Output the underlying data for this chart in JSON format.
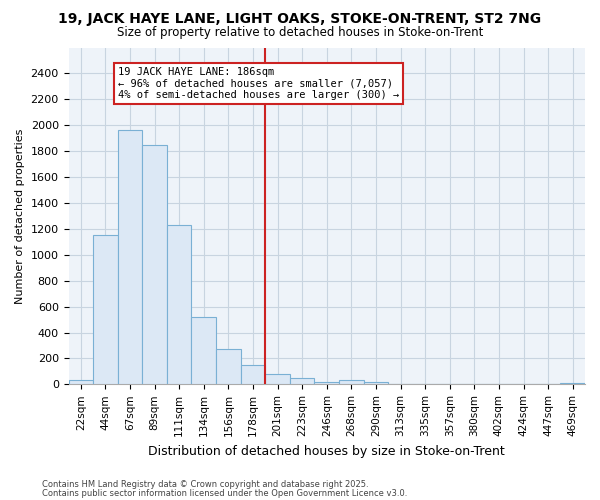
{
  "title_line1": "19, JACK HAYE LANE, LIGHT OAKS, STOKE-ON-TRENT, ST2 7NG",
  "title_line2": "Size of property relative to detached houses in Stoke-on-Trent",
  "xlabel": "Distribution of detached houses by size in Stoke-on-Trent",
  "ylabel": "Number of detached properties",
  "categories": [
    "22sqm",
    "44sqm",
    "67sqm",
    "89sqm",
    "111sqm",
    "134sqm",
    "156sqm",
    "178sqm",
    "201sqm",
    "223sqm",
    "246sqm",
    "268sqm",
    "290sqm",
    "313sqm",
    "335sqm",
    "357sqm",
    "380sqm",
    "402sqm",
    "424sqm",
    "447sqm",
    "469sqm"
  ],
  "values": [
    30,
    1150,
    1960,
    1850,
    1230,
    520,
    270,
    150,
    80,
    50,
    20,
    30,
    20,
    5,
    0,
    0,
    0,
    0,
    0,
    0,
    10
  ],
  "bar_face_color": "#dce8f5",
  "bar_edge_color": "#7ab0d4",
  "property_line_color": "#cc2222",
  "property_line_x": 7.5,
  "annotation_title": "19 JACK HAYE LANE: 186sqm",
  "annotation_line2": "← 96% of detached houses are smaller (7,057)",
  "annotation_line3": "4% of semi-detached houses are larger (300) →",
  "annotation_box_facecolor": "#ffffff",
  "annotation_box_edgecolor": "#cc2222",
  "ylim": [
    0,
    2600
  ],
  "yticks": [
    0,
    200,
    400,
    600,
    800,
    1000,
    1200,
    1400,
    1600,
    1800,
    2000,
    2200,
    2400
  ],
  "footer_line1": "Contains HM Land Registry data © Crown copyright and database right 2025.",
  "footer_line2": "Contains public sector information licensed under the Open Government Licence v3.0.",
  "fig_width": 6.0,
  "fig_height": 5.0,
  "background_color": "#ffffff",
  "plot_bg_color": "#eef3f9",
  "grid_color": "#c8d4e0"
}
